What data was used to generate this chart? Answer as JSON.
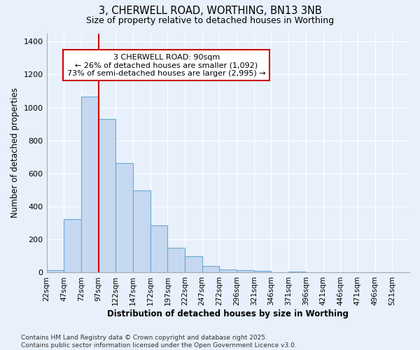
{
  "title1": "3, CHERWELL ROAD, WORTHING, BN13 3NB",
  "title2": "Size of property relative to detached houses in Worthing",
  "xlabel": "Distribution of detached houses by size in Worthing",
  "ylabel": "Number of detached properties",
  "categories": [
    "22sqm",
    "47sqm",
    "72sqm",
    "97sqm",
    "122sqm",
    "147sqm",
    "172sqm",
    "197sqm",
    "222sqm",
    "247sqm",
    "272sqm",
    "296sqm",
    "321sqm",
    "346sqm",
    "371sqm",
    "396sqm",
    "421sqm",
    "446sqm",
    "471sqm",
    "496sqm",
    "521sqm"
  ],
  "bar_values": [
    15,
    325,
    1065,
    930,
    665,
    500,
    285,
    150,
    100,
    42,
    20,
    15,
    12,
    0,
    8,
    0,
    0,
    0,
    0,
    0,
    0
  ],
  "bar_color": "#c5d8f0",
  "bar_edge_color": "#6aaad4",
  "background_color": "#e8f0fb",
  "grid_color": "#ffffff",
  "annotation_text": "3 CHERWELL ROAD: 90sqm\n← 26% of detached houses are smaller (1,092)\n73% of semi-detached houses are larger (2,995) →",
  "annotation_box_color": "#ffffff",
  "annotation_box_edge_color": "#cc0000",
  "vline_color": "#cc0000",
  "vline_pos": 3,
  "ylim": [
    0,
    1450
  ],
  "yticks": [
    0,
    200,
    400,
    600,
    800,
    1000,
    1200,
    1400
  ],
  "footnote": "Contains HM Land Registry data © Crown copyright and database right 2025.\nContains public sector information licensed under the Open Government Licence v3.0."
}
